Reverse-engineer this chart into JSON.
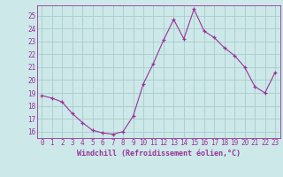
{
  "hours": [
    0,
    1,
    2,
    3,
    4,
    5,
    6,
    7,
    8,
    9,
    10,
    11,
    12,
    13,
    14,
    15,
    16,
    17,
    18,
    19,
    20,
    21,
    22,
    23
  ],
  "values": [
    18.8,
    18.6,
    18.3,
    17.4,
    16.7,
    16.1,
    15.9,
    15.8,
    16.0,
    17.2,
    19.7,
    21.3,
    23.1,
    24.7,
    23.2,
    25.5,
    23.8,
    23.3,
    22.5,
    21.9,
    21.0,
    19.5,
    19.0,
    20.6
  ],
  "xlabel": "Windchill (Refroidissement éolien,°C)",
  "line_color": "#993399",
  "marker": "+",
  "bg_color": "#cce8e8",
  "grid_color": "#aacccc",
  "text_color": "#993399",
  "ylim": [
    15.5,
    25.8
  ],
  "yticks": [
    16,
    17,
    18,
    19,
    20,
    21,
    22,
    23,
    24,
    25
  ],
  "xticks": [
    0,
    1,
    2,
    3,
    4,
    5,
    6,
    7,
    8,
    9,
    10,
    11,
    12,
    13,
    14,
    15,
    16,
    17,
    18,
    19,
    20,
    21,
    22,
    23
  ],
  "tick_fontsize": 5.5,
  "xlabel_fontsize": 6.0
}
